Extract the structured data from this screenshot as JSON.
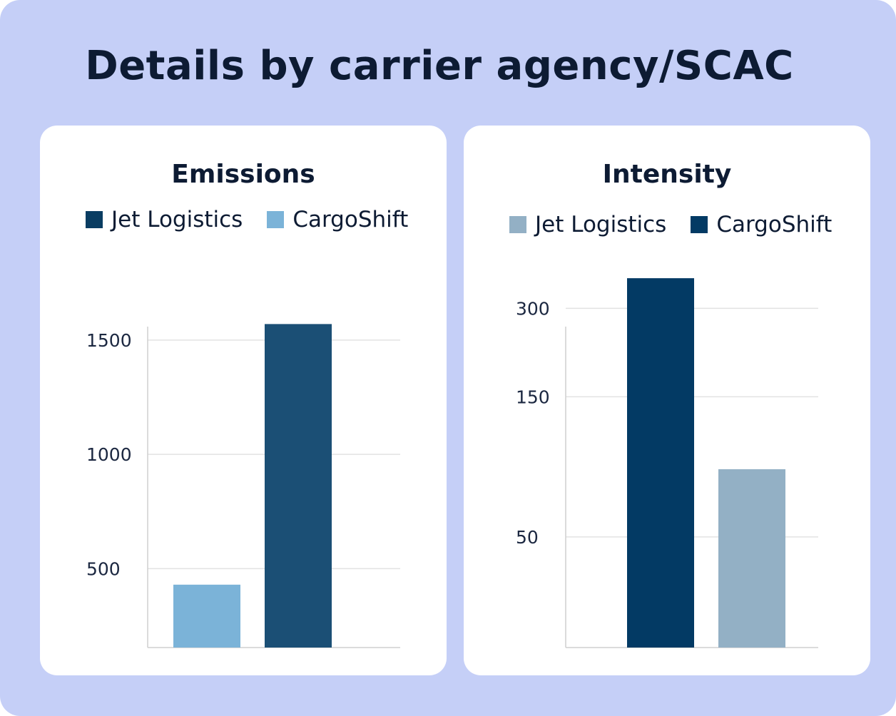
{
  "title": "Details by carrier agency/SCAC",
  "colors": {
    "background": "#c5cff7",
    "card": "#ffffff",
    "grid": "#e2e2e2",
    "axis": "#cfcfcf"
  },
  "chart_data": [
    {
      "type": "bar",
      "title": "Emissions",
      "legend": [
        {
          "label": "Jet Logistics",
          "color": "#0a3d62"
        },
        {
          "label": "CargoShift",
          "color": "#7bb3d8"
        }
      ],
      "legend_position": "top",
      "categories": [
        "CargoShift",
        "Jet Logistics"
      ],
      "values": [
        430,
        1570
      ],
      "bar_colors": [
        "#7bb3d8",
        "#1b4f75"
      ],
      "yticks": [
        500,
        1000,
        1500
      ],
      "ytick_labels": [
        "500",
        "1000",
        "1500"
      ],
      "ylim": [
        155,
        1565
      ],
      "grid": true
    },
    {
      "type": "bar",
      "title": "Intensity",
      "legend": [
        {
          "label": "Jet Logistics",
          "color": "#93b0c5"
        },
        {
          "label": "CargoShift",
          "color": "#033a64"
        }
      ],
      "legend_position": "top",
      "categories": [
        "CargoShift",
        "Jet Logistics"
      ],
      "values": [
        380,
        85
      ],
      "bar_colors": [
        "#033a64",
        "#93b0c5"
      ],
      "yscale": "log",
      "yticks": [
        50,
        150,
        300
      ],
      "ytick_labels": [
        "50",
        "150",
        "300"
      ],
      "ylim": [
        21,
        340
      ],
      "grid": true
    }
  ]
}
